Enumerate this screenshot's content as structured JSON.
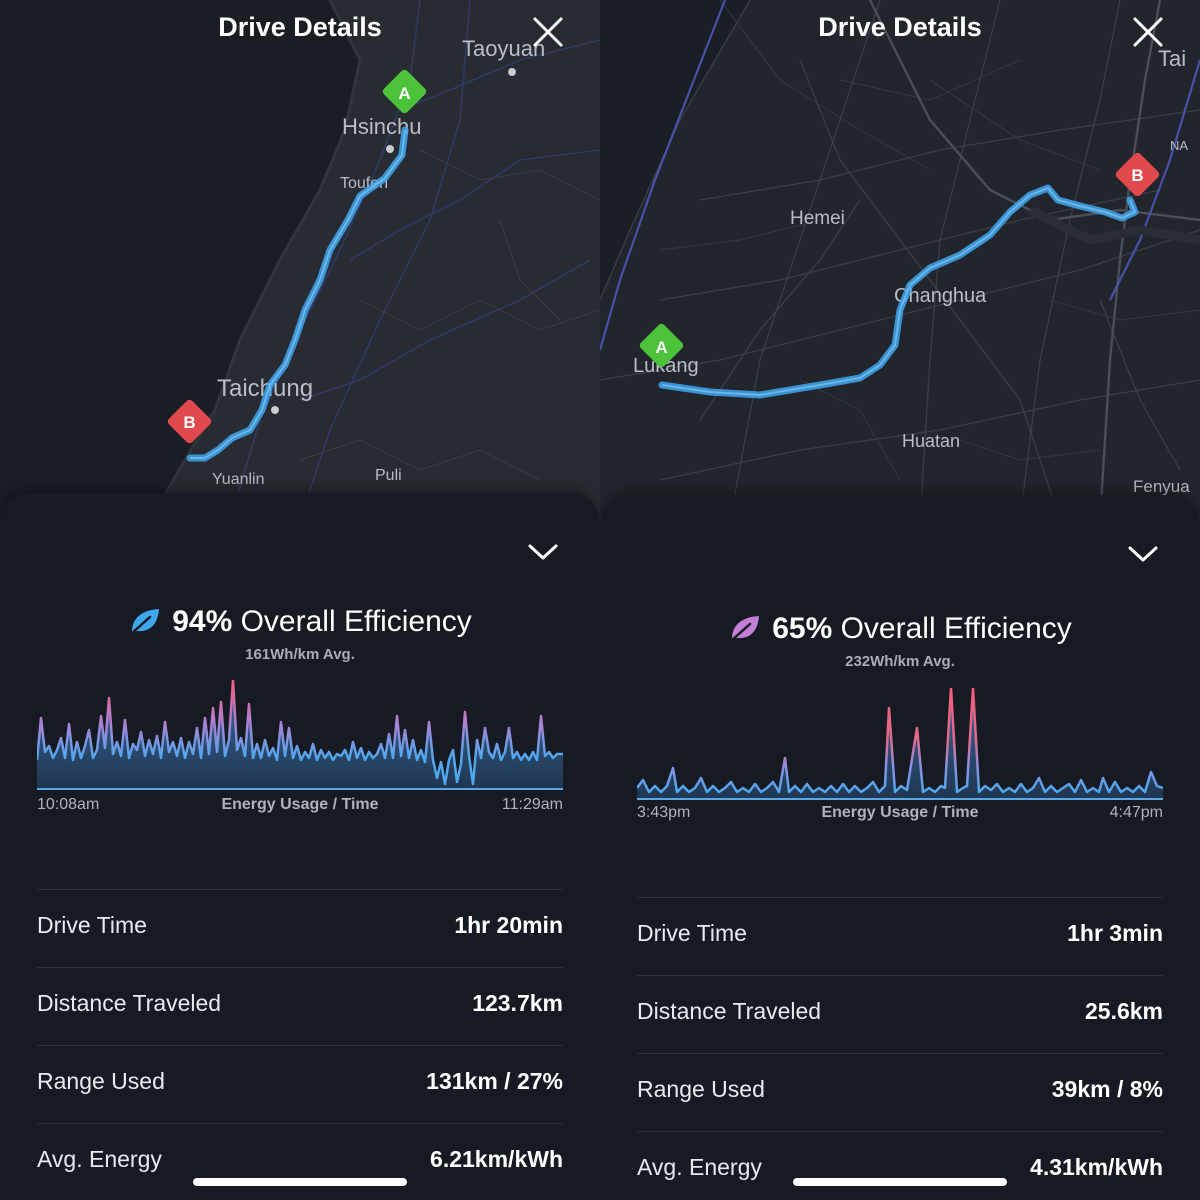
{
  "screens": [
    {
      "header": {
        "title": "Drive Details"
      },
      "map": {
        "labels": [
          "Taoyuan",
          "Hsinchu",
          "Toufen",
          "Taichung",
          "Yuanlin",
          "Puli"
        ],
        "markers": {
          "start": "A",
          "end": "B"
        },
        "route_color": "#3fa6ee"
      },
      "efficiency": {
        "percent": "94%",
        "label": "Overall Efficiency",
        "avg": "161Wh/km Avg.",
        "leaf_color": "#3fa6ee"
      },
      "chart": {
        "start_time": "10:08am",
        "title": "Energy Usage / Time",
        "end_time": "11:29am"
      },
      "stats": [
        {
          "label": "Drive Time",
          "value": "1hr 20min"
        },
        {
          "label": "Distance Traveled",
          "value": "123.7km"
        },
        {
          "label": "Range Used",
          "value": "131km / 27%"
        },
        {
          "label": "Avg. Energy",
          "value": "6.21km/kWh"
        }
      ]
    },
    {
      "header": {
        "title": "Drive Details"
      },
      "map": {
        "labels": [
          "Tai",
          "NA",
          "Hemei",
          "Changhua",
          "Lukang",
          "Huatan",
          "Fenyua"
        ],
        "markers": {
          "start": "A",
          "end": "B"
        },
        "route_color": "#3fa6ee"
      },
      "efficiency": {
        "percent": "65%",
        "label": "Overall Efficiency",
        "avg": "232Wh/km Avg.",
        "leaf_color": "#c47fd8"
      },
      "chart": {
        "start_time": "3:43pm",
        "title": "Energy Usage / Time",
        "end_time": "4:47pm"
      },
      "stats": [
        {
          "label": "Drive Time",
          "value": "1hr 3min"
        },
        {
          "label": "Distance Traveled",
          "value": "25.6km"
        },
        {
          "label": "Range Used",
          "value": "39km / 8%"
        },
        {
          "label": "Avg. Energy",
          "value": "4.31km/kWh"
        }
      ]
    }
  ]
}
